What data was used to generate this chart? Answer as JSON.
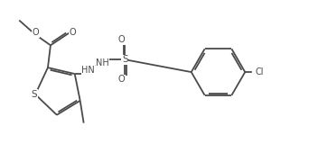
{
  "bg_color": "#ffffff",
  "line_color": "#4a4a4a",
  "text_color": "#4a4a4a",
  "line_width": 1.3,
  "font_size": 7.0,
  "fig_width": 3.52,
  "fig_height": 1.8,
  "dpi": 100,
  "xlim": [
    0,
    3.52
  ],
  "ylim": [
    0,
    1.8
  ]
}
